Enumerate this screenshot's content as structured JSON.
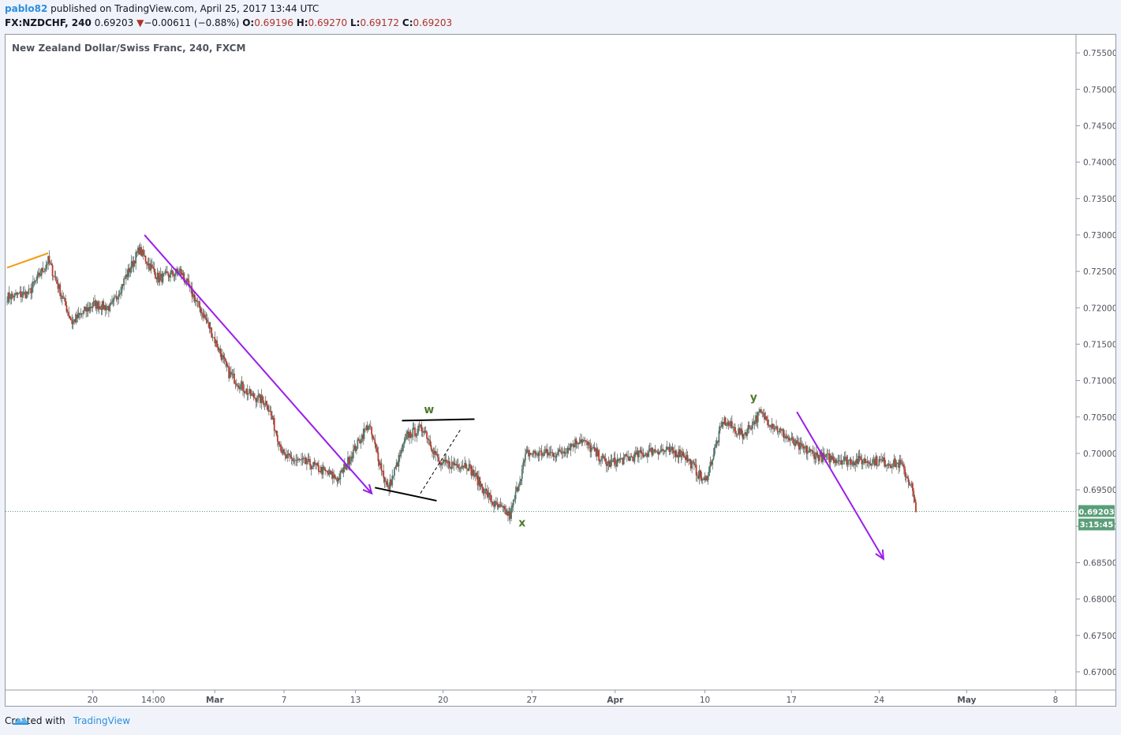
{
  "header": {
    "user": "pablo82",
    "published": "published on TradingView.com, April 25, 2017 13:44 UTC",
    "symbol": "FX:NZDCHF, 240",
    "last": "0.69203",
    "change_arrow": "▼",
    "change": "−0.00611 (−0.88%)",
    "o_label": "O:",
    "o": "0.69196",
    "h_label": "H:",
    "h": "0.69270",
    "l_label": "L:",
    "l": "0.69172",
    "c_label": "C:",
    "c": "0.69203"
  },
  "footer": {
    "created": "Created with",
    "brand": "TradingView",
    "logo_icon": "tradingview-cloud-icon"
  },
  "colors": {
    "up": "#4f7b6a",
    "down": "#c0392b",
    "arrow": "#9b1dea",
    "trend": "#f39c12",
    "label": "#4e7a2e",
    "price_badge": "#5a9e78"
  },
  "chart_data": {
    "type": "candlestick",
    "title": "New Zealand Dollar/Swiss Franc, 240, FXCM",
    "ylim": [
      0.6675,
      0.7575
    ],
    "y_ticks": [
      "0.75500",
      "0.75000",
      "0.74500",
      "0.74000",
      "0.73500",
      "0.73000",
      "0.72500",
      "0.72000",
      "0.71500",
      "0.71000",
      "0.70500",
      "0.70000",
      "0.69500",
      "0.69000",
      "0.68500",
      "0.68000",
      "0.67500",
      "0.67000"
    ],
    "x_ticks": [
      "20",
      "14:00",
      "Mar",
      "7",
      "13",
      "20",
      "27",
      "Apr",
      "10",
      "17",
      "24",
      "May",
      "8"
    ],
    "last_price": "0.69203",
    "countdown": "3:15:45",
    "key_points": [
      {
        "t": 0,
        "v": 0.7215
      },
      {
        "t": 20,
        "v": 0.722
      },
      {
        "t": 38,
        "v": 0.7265
      },
      {
        "t": 60,
        "v": 0.718
      },
      {
        "t": 80,
        "v": 0.7205
      },
      {
        "t": 96,
        "v": 0.72
      },
      {
        "t": 122,
        "v": 0.728
      },
      {
        "t": 140,
        "v": 0.724
      },
      {
        "t": 160,
        "v": 0.725
      },
      {
        "t": 185,
        "v": 0.718
      },
      {
        "t": 205,
        "v": 0.711
      },
      {
        "t": 225,
        "v": 0.708
      },
      {
        "t": 240,
        "v": 0.707
      },
      {
        "t": 256,
        "v": 0.6995
      },
      {
        "t": 280,
        "v": 0.6985
      },
      {
        "t": 306,
        "v": 0.6965
      },
      {
        "t": 334,
        "v": 0.704
      },
      {
        "t": 352,
        "v": 0.695
      },
      {
        "t": 370,
        "v": 0.7025
      },
      {
        "t": 385,
        "v": 0.7035
      },
      {
        "t": 400,
        "v": 0.6985
      },
      {
        "t": 425,
        "v": 0.6985
      },
      {
        "t": 450,
        "v": 0.693
      },
      {
        "t": 465,
        "v": 0.6915
      },
      {
        "t": 480,
        "v": 0.7
      },
      {
        "t": 510,
        "v": 0.7
      },
      {
        "t": 530,
        "v": 0.702
      },
      {
        "t": 555,
        "v": 0.6985
      },
      {
        "t": 600,
        "v": 0.7005
      },
      {
        "t": 625,
        "v": 0.7
      },
      {
        "t": 645,
        "v": 0.696
      },
      {
        "t": 662,
        "v": 0.7045
      },
      {
        "t": 680,
        "v": 0.7025
      },
      {
        "t": 696,
        "v": 0.7055
      },
      {
        "t": 730,
        "v": 0.701
      },
      {
        "t": 752,
        "v": 0.6995
      },
      {
        "t": 780,
        "v": 0.699
      },
      {
        "t": 802,
        "v": 0.699
      },
      {
        "t": 826,
        "v": 0.6985
      },
      {
        "t": 836,
        "v": 0.6955
      },
      {
        "t": 840,
        "v": 0.692
      }
    ],
    "annotations": [
      {
        "text": "w",
        "t": 390,
        "v": 0.7055
      },
      {
        "text": "x",
        "t": 476,
        "v": 0.69
      },
      {
        "text": "y",
        "t": 690,
        "v": 0.7072
      }
    ]
  }
}
